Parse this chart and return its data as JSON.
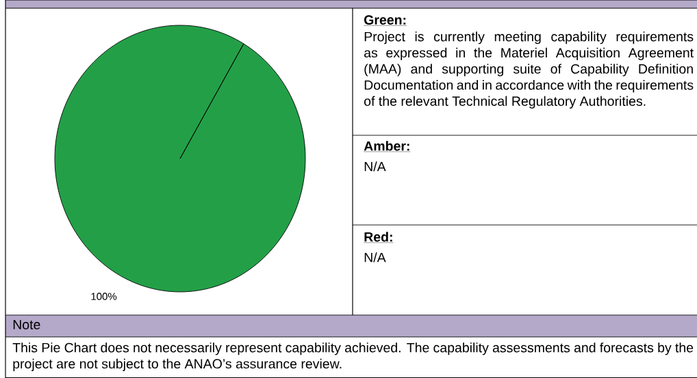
{
  "chart_data": [
    {
      "type": "pie",
      "categories": [
        null
      ],
      "values": [
        100
      ],
      "colors": [
        "#23a047"
      ],
      "value_labels": [
        "100%"
      ]
    },
    {
      "type": "other",
      "annotations": [
        "Green:",
        "Project is currently meeting capability requirements as expressed in the Materiel Acquisition Agreement (MAA) and supporting suite of Capability Definition Documentation and in accordance with the requirements of the relevant Technical Regulatory Authorities.",
        "Amber:",
        "N/A",
        "Red:",
        "N/A",
        "Note",
        "This Pie Chart does not necessarily represent capability achieved. The capability assessments and forecasts by the project are not subject to the ANAO’s assurance review."
      ]
    }
  ]
}
